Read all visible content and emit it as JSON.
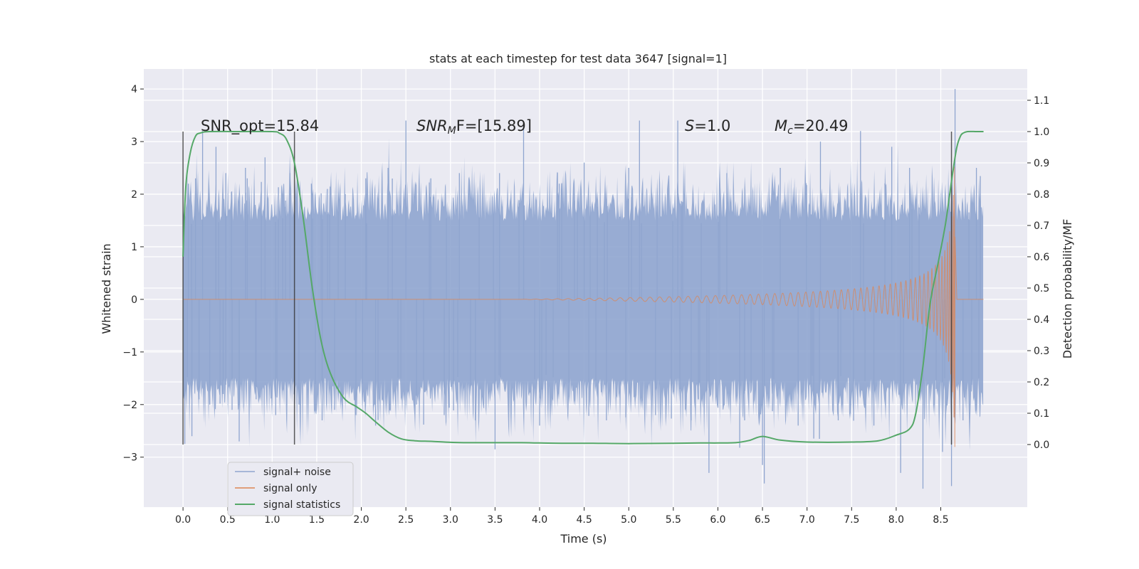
{
  "chart_data": {
    "type": "line",
    "title": "stats at each timestep for test data 3647 [signal=1]",
    "xlabel": "Time (s)",
    "ylabel": "Whitened strain",
    "y2label": "Detection probability/MF",
    "xlim": [
      -0.44,
      9.47
    ],
    "ylim": [
      -3.95,
      4.38
    ],
    "y2lim": [
      -0.2,
      1.2
    ],
    "x_ticks": [
      "0.0",
      "0.5",
      "1.0",
      "1.5",
      "2.0",
      "2.5",
      "3.0",
      "3.5",
      "4.0",
      "4.5",
      "5.0",
      "5.5",
      "6.0",
      "6.5",
      "7.0",
      "7.5",
      "8.0",
      "8.5"
    ],
    "y_ticks": [
      "4",
      "3",
      "2",
      "1",
      "0",
      "−1",
      "−2",
      "−3"
    ],
    "y2_ticks": [
      "1.1",
      "1.0",
      "0.9",
      "0.8",
      "0.7",
      "0.6",
      "0.5",
      "0.4",
      "0.3",
      "0.2",
      "0.1",
      "0.0"
    ],
    "grid": true,
    "legend_position": "lower-left",
    "colors": {
      "noise": "#8fa5cf",
      "signal": "#dd8452",
      "stats": "#55a868",
      "vline": "#333333"
    },
    "annotations": {
      "snr_opt": "SNR_opt=15.84",
      "snr_mf_base": "SNR",
      "snr_mf_sub": "M",
      "snr_mf_rest": "F=[15.89]",
      "s_var": "S",
      "s_rest": "=1.0",
      "mc_var": "M",
      "mc_sub": "c",
      "mc_rest": "=20.49"
    },
    "vertical_lines_x": [
      0.0,
      1.25,
      8.62
    ],
    "series": [
      {
        "name": "signal+ noise",
        "sample_rate": 1000,
        "x_range": [
          0.0,
          8.98
        ],
        "envelope_rms": 0.85,
        "spikes": [
          [
            0.02,
            -2.75
          ],
          [
            0.06,
            2.2
          ],
          [
            0.1,
            -2.6
          ],
          [
            0.14,
            2.3
          ],
          [
            0.18,
            -1.9
          ],
          [
            0.22,
            3.2
          ],
          [
            0.3,
            -2.0
          ],
          [
            0.37,
            2.9
          ],
          [
            0.45,
            -1.8
          ],
          [
            0.48,
            2.4
          ],
          [
            0.55,
            -2.1
          ],
          [
            0.63,
            -2.7
          ],
          [
            0.7,
            2.5
          ],
          [
            0.72,
            2.3
          ],
          [
            0.82,
            -1.9
          ],
          [
            0.92,
            2.7
          ],
          [
            1.04,
            -2.2
          ],
          [
            1.2,
            2.4
          ],
          [
            1.3,
            -2.0
          ],
          [
            1.44,
            2.2
          ],
          [
            1.56,
            -2.3
          ],
          [
            1.62,
            2.1
          ],
          [
            1.7,
            -2.1
          ],
          [
            1.82,
            2.0
          ],
          [
            1.94,
            -2.2
          ],
          [
            2.05,
            2.3
          ],
          [
            2.16,
            -2.4
          ],
          [
            2.3,
            2.5
          ],
          [
            2.5,
            3.4
          ],
          [
            2.62,
            -2.0
          ],
          [
            2.78,
            2.3
          ],
          [
            2.93,
            -2.2
          ],
          [
            3.1,
            2.4
          ],
          [
            3.28,
            -2.3
          ],
          [
            3.5,
            -2.85
          ],
          [
            3.55,
            2.4
          ],
          [
            3.82,
            3.3
          ],
          [
            4.0,
            -2.4
          ],
          [
            4.22,
            2.2
          ],
          [
            4.5,
            2.6
          ],
          [
            4.75,
            -2.3
          ],
          [
            5.0,
            2.5
          ],
          [
            5.12,
            3.4
          ],
          [
            5.3,
            -2.2
          ],
          [
            5.55,
            3.4
          ],
          [
            5.7,
            -2.3
          ],
          [
            5.9,
            -3.3
          ],
          [
            6.1,
            2.4
          ],
          [
            6.3,
            -2.3
          ],
          [
            6.5,
            -3.15
          ],
          [
            6.52,
            -3.5
          ],
          [
            6.7,
            2.5
          ],
          [
            6.9,
            -2.4
          ],
          [
            7.15,
            3.0
          ],
          [
            7.35,
            -2.3
          ],
          [
            7.6,
            3.2
          ],
          [
            7.75,
            -2.4
          ],
          [
            7.95,
            2.9
          ],
          [
            8.05,
            -3.3
          ],
          [
            8.15,
            2.5
          ],
          [
            8.3,
            -3.6
          ],
          [
            8.52,
            -2.9
          ],
          [
            8.62,
            -3.55
          ],
          [
            8.66,
            4.0
          ],
          [
            8.75,
            -2.3
          ],
          [
            8.9,
            2.5
          ]
        ]
      },
      {
        "name": "signal only",
        "chirp_start_time": 3.8,
        "merger_time": 8.66,
        "peak_amplitude": 3.0,
        "frequency_start_hz": 8,
        "frequency_end_hz": 150
      },
      {
        "name": "signal statistics",
        "axis": "right",
        "x": [
          0.0,
          0.03,
          0.08,
          0.14,
          0.2,
          0.3,
          0.6,
          1.0,
          1.08,
          1.16,
          1.25,
          1.35,
          1.45,
          1.55,
          1.65,
          1.8,
          1.95,
          2.05,
          2.15,
          2.3,
          2.45,
          2.6,
          2.8,
          3.0,
          3.2,
          3.5,
          3.8,
          4.0,
          4.3,
          4.6,
          5.0,
          5.5,
          5.8,
          6.0,
          6.2,
          6.35,
          6.5,
          6.7,
          7.0,
          7.5,
          7.8,
          8.0,
          8.15,
          8.22,
          8.3,
          8.38,
          8.47,
          8.55,
          8.6,
          8.64,
          8.68,
          8.72,
          8.75,
          8.8,
          8.9,
          8.98
        ],
        "y": [
          0.6,
          0.82,
          0.93,
          0.985,
          0.996,
          1.0,
          1.0,
          1.0,
          0.995,
          0.975,
          0.9,
          0.72,
          0.5,
          0.33,
          0.23,
          0.15,
          0.12,
          0.1,
          0.075,
          0.04,
          0.018,
          0.012,
          0.01,
          0.007,
          0.006,
          0.006,
          0.006,
          0.005,
          0.004,
          0.004,
          0.003,
          0.004,
          0.005,
          0.005,
          0.006,
          0.013,
          0.026,
          0.014,
          0.008,
          0.008,
          0.012,
          0.03,
          0.05,
          0.1,
          0.25,
          0.45,
          0.58,
          0.7,
          0.8,
          0.88,
          0.95,
          0.985,
          0.995,
          1.0,
          1.0,
          1.0
        ]
      }
    ]
  }
}
